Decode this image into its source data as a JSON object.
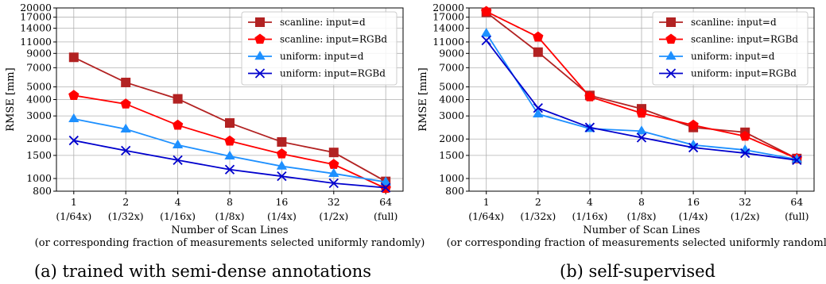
{
  "figure": {
    "captions": [
      "(a) trained with semi-dense annotations",
      "(b) self-supervised"
    ]
  },
  "chart_data": [
    {
      "type": "line",
      "caption": "(a) trained with semi-dense annotations",
      "ylabel": "RMSE [mm]",
      "xlabel": "Number of Scan Lines",
      "xlabel2": "(or corresponding fraction of measurements selected uniformly randomly)",
      "y_scale": "log",
      "ylim": [
        800,
        20000
      ],
      "y_ticks": [
        800,
        1000,
        1500,
        2000,
        3000,
        4000,
        5000,
        7000,
        9000,
        11000,
        14000,
        17000,
        20000
      ],
      "categories": [
        "1",
        "2",
        "4",
        "8",
        "16",
        "32",
        "64"
      ],
      "category_sublabels": [
        "(1/64x)",
        "(1/32x)",
        "(1/16x)",
        "(1/8x)",
        "(1/4x)",
        "(1/2x)",
        "(full)"
      ],
      "grid": true,
      "legend_position": "top-right",
      "series": [
        {
          "name": "scanline: input=d",
          "color": "#b22222",
          "marker": "square",
          "values": [
            8400,
            5400,
            4050,
            2650,
            1900,
            1580,
            950
          ]
        },
        {
          "name": "scanline: input=RGBd",
          "color": "#ff0000",
          "marker": "pentagon",
          "values": [
            4300,
            3700,
            2550,
            1930,
            1540,
            1280,
            840
          ]
        },
        {
          "name": "uniform: input=d",
          "color": "#1e90ff",
          "marker": "triangle",
          "values": [
            2850,
            2380,
            1800,
            1480,
            1240,
            1090,
            940
          ]
        },
        {
          "name": "uniform: input=RGBd",
          "color": "#0000cd",
          "marker": "x",
          "values": [
            1950,
            1630,
            1380,
            1170,
            1040,
            920,
            850
          ]
        }
      ]
    },
    {
      "type": "line",
      "caption": "(b) self-supervised",
      "ylabel": "RMSE [mm]",
      "xlabel": "Number of Scan Lines",
      "xlabel2": "(or corresponding fraction of measurements selected uniformly randomly)",
      "y_scale": "log",
      "ylim": [
        800,
        20000
      ],
      "y_ticks": [
        800,
        1000,
        1500,
        2000,
        3000,
        4000,
        5000,
        7000,
        9000,
        11000,
        14000,
        17000,
        20000
      ],
      "categories": [
        "1",
        "2",
        "4",
        "8",
        "16",
        "32",
        "64"
      ],
      "category_sublabels": [
        "(1/64x)",
        "(1/32x)",
        "(1/16x)",
        "(1/8x)",
        "(1/4x)",
        "(1/2x)",
        "(full)"
      ],
      "grid": true,
      "legend_position": "top-right",
      "series": [
        {
          "name": "scanline: input=d",
          "color": "#b22222",
          "marker": "square",
          "values": [
            18500,
            9200,
            4300,
            3400,
            2450,
            2250,
            1420
          ]
        },
        {
          "name": "scanline: input=RGBd",
          "color": "#ff0000",
          "marker": "pentagon",
          "values": [
            18800,
            12000,
            4200,
            3150,
            2550,
            2100,
            1420
          ]
        },
        {
          "name": "uniform: input=d",
          "color": "#1e90ff",
          "marker": "triangle",
          "values": [
            12800,
            3100,
            2400,
            2300,
            1800,
            1650,
            1400
          ]
        },
        {
          "name": "uniform: input=RGBd",
          "color": "#0000cd",
          "marker": "x",
          "values": [
            11300,
            3450,
            2450,
            2050,
            1720,
            1560,
            1380
          ]
        }
      ]
    }
  ]
}
